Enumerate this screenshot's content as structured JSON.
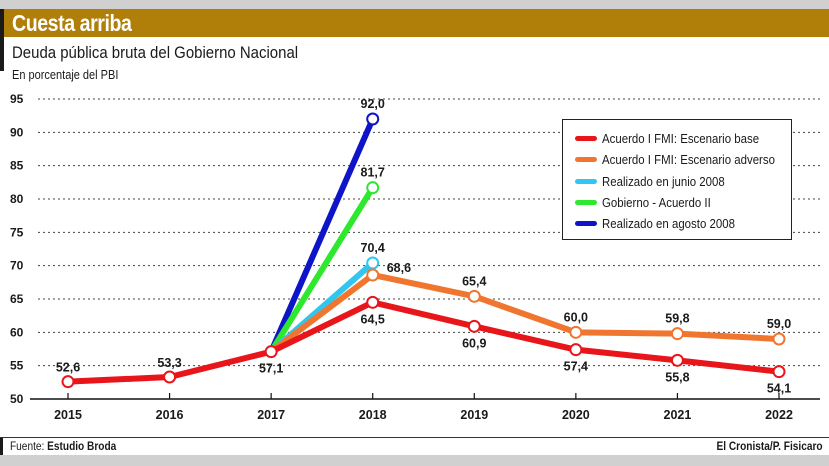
{
  "header": {
    "title": "Cuesta arriba",
    "subtitle": "Deuda pública bruta del Gobierno Nacional",
    "unit": "En porcentaje del PBI"
  },
  "footer": {
    "source_prefix": "Fuente: ",
    "source_name": "Estudio Broda",
    "credit": "El Cronista/P. Fisicaro"
  },
  "colors": {
    "header_bg": "#b07f0a",
    "base": "#e8161b",
    "adverso": "#f0762f",
    "junio": "#31c6ef",
    "gobierno": "#2de82d",
    "agosto": "#0e14c8"
  },
  "chart_data": {
    "type": "line",
    "title": "Deuda pública bruta del Gobierno Nacional",
    "subtitle": "En porcentaje del PBI",
    "xlabel": "",
    "ylabel": "En porcentaje del PBI",
    "ylim": [
      50,
      95
    ],
    "yticks": [
      "50",
      "55",
      "60",
      "65",
      "70",
      "75",
      "80",
      "85",
      "90",
      "95"
    ],
    "x": [
      "2015",
      "2016",
      "2017",
      "2018",
      "2019",
      "2020",
      "2021",
      "2022"
    ],
    "grid": "horizontal-dotted",
    "legend_position": "top-right",
    "series": [
      {
        "name": "Acuerdo I FMI: Escenario base",
        "key": "base",
        "points": [
          [
            "2015",
            52.6,
            "52,6",
            "above"
          ],
          [
            "2016",
            53.3,
            "53,3",
            "above"
          ],
          [
            "2017",
            57.1,
            "57,1",
            "below"
          ],
          [
            "2018",
            64.5,
            "64,5",
            "below"
          ],
          [
            "2019",
            60.9,
            "60,9",
            "below"
          ],
          [
            "2020",
            57.4,
            "57,4",
            "below"
          ],
          [
            "2021",
            55.8,
            "55,8",
            "below"
          ],
          [
            "2022",
            54.1,
            "54,1",
            "below"
          ]
        ]
      },
      {
        "name": "Acuerdo I FMI: Escenario adverso",
        "key": "adverso",
        "points": [
          [
            "2017",
            57.1,
            "",
            ""
          ],
          [
            "2018",
            68.6,
            "68,6",
            "right"
          ],
          [
            "2019",
            65.4,
            "65,4",
            "above"
          ],
          [
            "2020",
            60.0,
            "60,0",
            "above"
          ],
          [
            "2021",
            59.8,
            "59,8",
            "above"
          ],
          [
            "2022",
            59.0,
            "59,0",
            "above"
          ]
        ]
      },
      {
        "name": "Realizado en junio 2008",
        "key": "junio",
        "points": [
          [
            "2017",
            57.1,
            "",
            ""
          ],
          [
            "2018",
            70.4,
            "70,4",
            "above"
          ]
        ]
      },
      {
        "name": "Gobierno - Acuerdo II",
        "key": "gobierno",
        "points": [
          [
            "2017",
            57.1,
            "",
            ""
          ],
          [
            "2018",
            81.7,
            "81,7",
            "above"
          ]
        ]
      },
      {
        "name": "Realizado en agosto 2008",
        "key": "agosto",
        "points": [
          [
            "2017",
            57.1,
            "",
            ""
          ],
          [
            "2018",
            92.0,
            "92,0",
            "above"
          ]
        ]
      }
    ]
  }
}
